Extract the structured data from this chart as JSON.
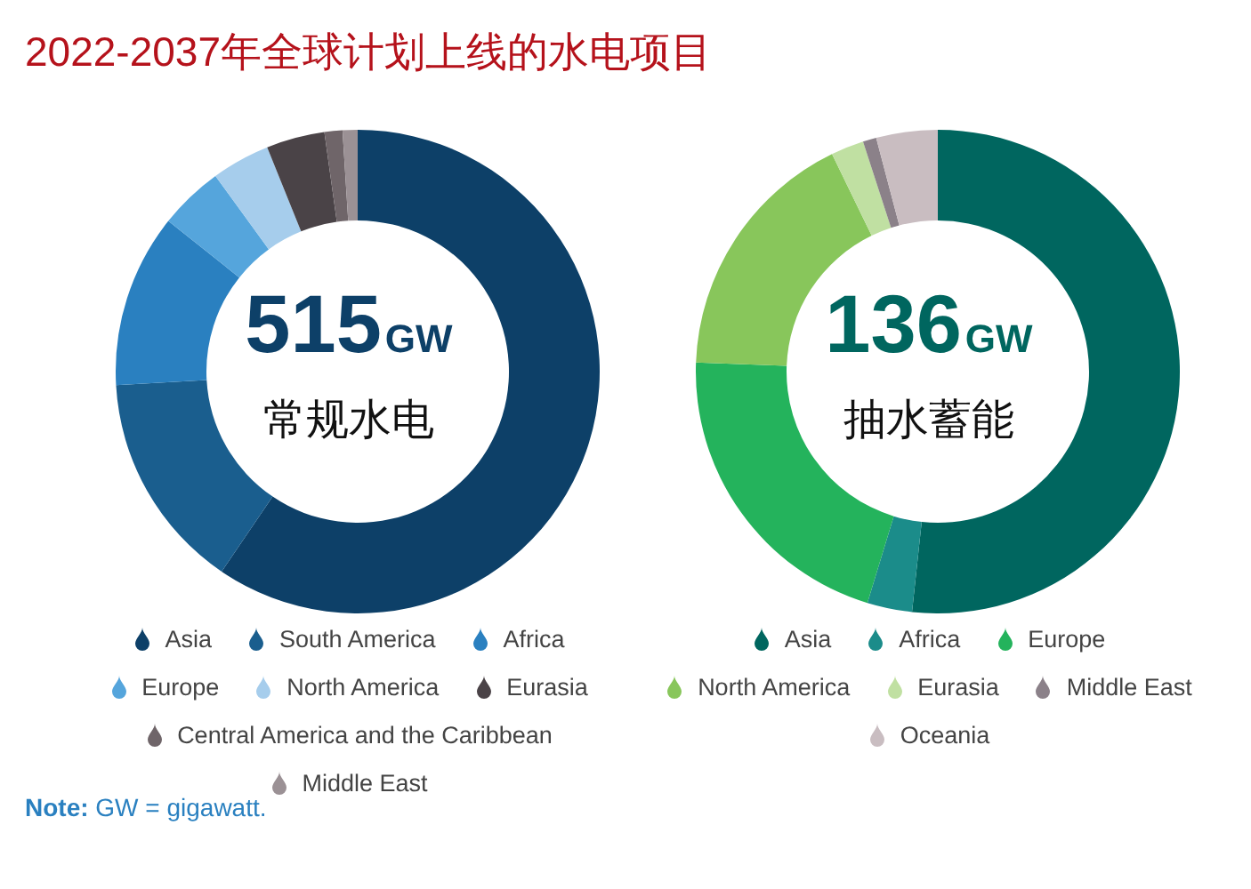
{
  "chart_data": [
    {
      "type": "donut",
      "title": "2022-2037年全球计划上线的水电项目",
      "categories": [
        "Asia",
        "South America",
        "Africa",
        "Europe",
        "North America",
        "Eurasia",
        "Central America and the Caribbean",
        "Middle East"
      ],
      "values": [
        59.5,
        14.6,
        11.6,
        4.3,
        3.9,
        3.9,
        1.2,
        1.0
      ],
      "colors": [
        "#0d4068",
        "#1a5e8e",
        "#2a80c0",
        "#55a5dc",
        "#a6cdec",
        "#4a4347",
        "#6f6569",
        "#9b9195"
      ],
      "annotations": [
        "515GW",
        "常规水电",
        "Note: GW = gigawatt."
      ],
      "legend": "bottom"
    },
    {
      "type": "donut",
      "categories": [
        "Asia",
        "Africa",
        "Europe",
        "North America",
        "Eurasia",
        "Middle East",
        "Oceania"
      ],
      "values": [
        51.7,
        3.0,
        20.9,
        17.2,
        2.2,
        0.9,
        4.1
      ],
      "colors": [
        "#00665f",
        "#1b8c8a",
        "#24b35c",
        "#88c65b",
        "#c0e0a2",
        "#8b8189",
        "#c9bdc1"
      ],
      "annotations": [
        "136GW",
        "抽水蓄能"
      ],
      "legend": "bottom"
    }
  ]
}
